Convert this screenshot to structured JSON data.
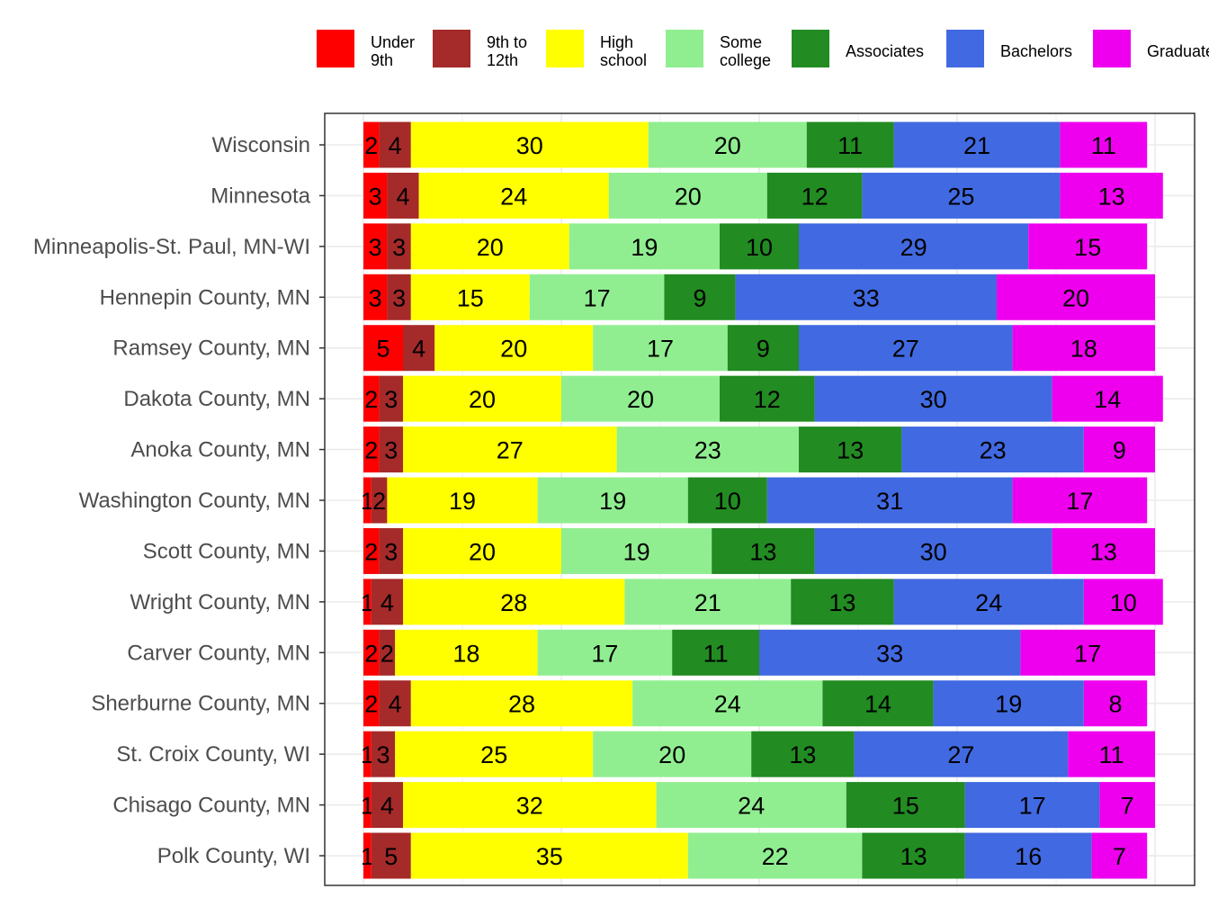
{
  "chart_data": {
    "type": "bar",
    "orientation": "horizontal",
    "stacked": true,
    "title": "",
    "xlabel": "",
    "ylabel": "",
    "legend_position": "top",
    "grid": true,
    "categories": [
      "Wisconsin",
      "Minnesota",
      "Minneapolis-St. Paul, MN-WI",
      "Hennepin County, MN",
      "Ramsey County, MN",
      "Dakota County, MN",
      "Anoka County, MN",
      "Washington County, MN",
      "Scott County, MN",
      "Wright County, MN",
      "Carver County, MN",
      "Sherburne County, MN",
      "St. Croix County, WI",
      "Chisago County, MN",
      "Polk County, WI"
    ],
    "series": [
      {
        "name": "Under\n9th",
        "color": "#ff0000",
        "values": [
          2,
          3,
          3,
          3,
          5,
          2,
          2,
          1,
          2,
          1,
          2,
          2,
          1,
          1,
          1
        ]
      },
      {
        "name": "9th to\n12th",
        "color": "#a52a2a",
        "values": [
          4,
          4,
          3,
          3,
          4,
          3,
          3,
          2,
          3,
          4,
          2,
          4,
          3,
          4,
          5
        ]
      },
      {
        "name": "High\nschool",
        "color": "#ffff00",
        "values": [
          30,
          24,
          20,
          15,
          20,
          20,
          27,
          19,
          20,
          28,
          18,
          28,
          25,
          32,
          35
        ]
      },
      {
        "name": "Some\ncollege",
        "color": "#90ee90",
        "values": [
          20,
          20,
          19,
          17,
          17,
          20,
          23,
          19,
          19,
          21,
          17,
          24,
          20,
          24,
          22
        ]
      },
      {
        "name": "Associates",
        "color": "#228b22",
        "values": [
          11,
          12,
          10,
          9,
          9,
          12,
          13,
          10,
          13,
          13,
          11,
          14,
          13,
          15,
          13
        ]
      },
      {
        "name": "Bachelors",
        "color": "#4169e1",
        "values": [
          21,
          25,
          29,
          33,
          27,
          30,
          23,
          31,
          30,
          24,
          33,
          19,
          27,
          17,
          16
        ]
      },
      {
        "name": "Graduate",
        "color": "#ee00ee",
        "values": [
          11,
          13,
          15,
          20,
          18,
          14,
          9,
          17,
          13,
          10,
          17,
          8,
          11,
          7,
          7
        ]
      }
    ]
  }
}
